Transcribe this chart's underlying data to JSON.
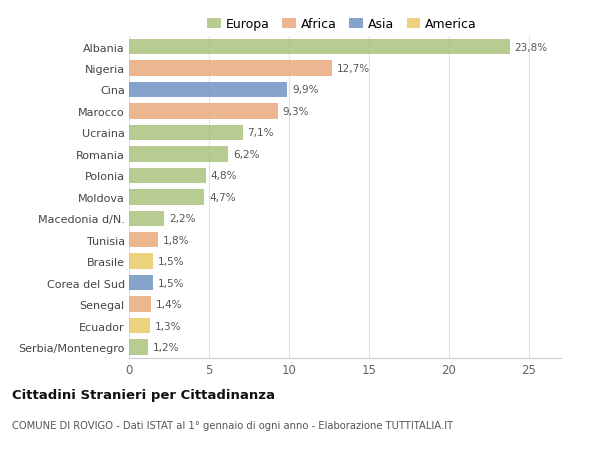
{
  "categories": [
    "Albania",
    "Nigeria",
    "Cina",
    "Marocco",
    "Ucraina",
    "Romania",
    "Polonia",
    "Moldova",
    "Macedonia d/N.",
    "Tunisia",
    "Brasile",
    "Corea del Sud",
    "Senegal",
    "Ecuador",
    "Serbia/Montenegro"
  ],
  "values": [
    23.8,
    12.7,
    9.9,
    9.3,
    7.1,
    6.2,
    4.8,
    4.7,
    2.2,
    1.8,
    1.5,
    1.5,
    1.4,
    1.3,
    1.2
  ],
  "labels": [
    "23,8%",
    "12,7%",
    "9,9%",
    "9,3%",
    "7,1%",
    "6,2%",
    "4,8%",
    "4,7%",
    "2,2%",
    "1,8%",
    "1,5%",
    "1,5%",
    "1,4%",
    "1,3%",
    "1,2%"
  ],
  "colors": [
    "#a8c07a",
    "#e8a878",
    "#6b8fc0",
    "#e8a878",
    "#a8c07a",
    "#a8c07a",
    "#a8c07a",
    "#a8c07a",
    "#a8c07a",
    "#e8a878",
    "#e8c860",
    "#6b8fc0",
    "#e8a878",
    "#e8c860",
    "#a8c07a"
  ],
  "legend_labels": [
    "Europa",
    "Africa",
    "Asia",
    "America"
  ],
  "legend_colors": [
    "#a8c07a",
    "#e8a878",
    "#6b8fc0",
    "#e8c860"
  ],
  "xlim": [
    0,
    27
  ],
  "xticks": [
    0,
    5,
    10,
    15,
    20,
    25
  ],
  "title": "Cittadini Stranieri per Cittadinanza",
  "subtitle": "COMUNE DI ROVIGO - Dati ISTAT al 1° gennaio di ogni anno - Elaborazione TUTTITALIA.IT",
  "bg_color": "#ffffff",
  "grid_color": "#e0e0e0",
  "bar_height": 0.72
}
